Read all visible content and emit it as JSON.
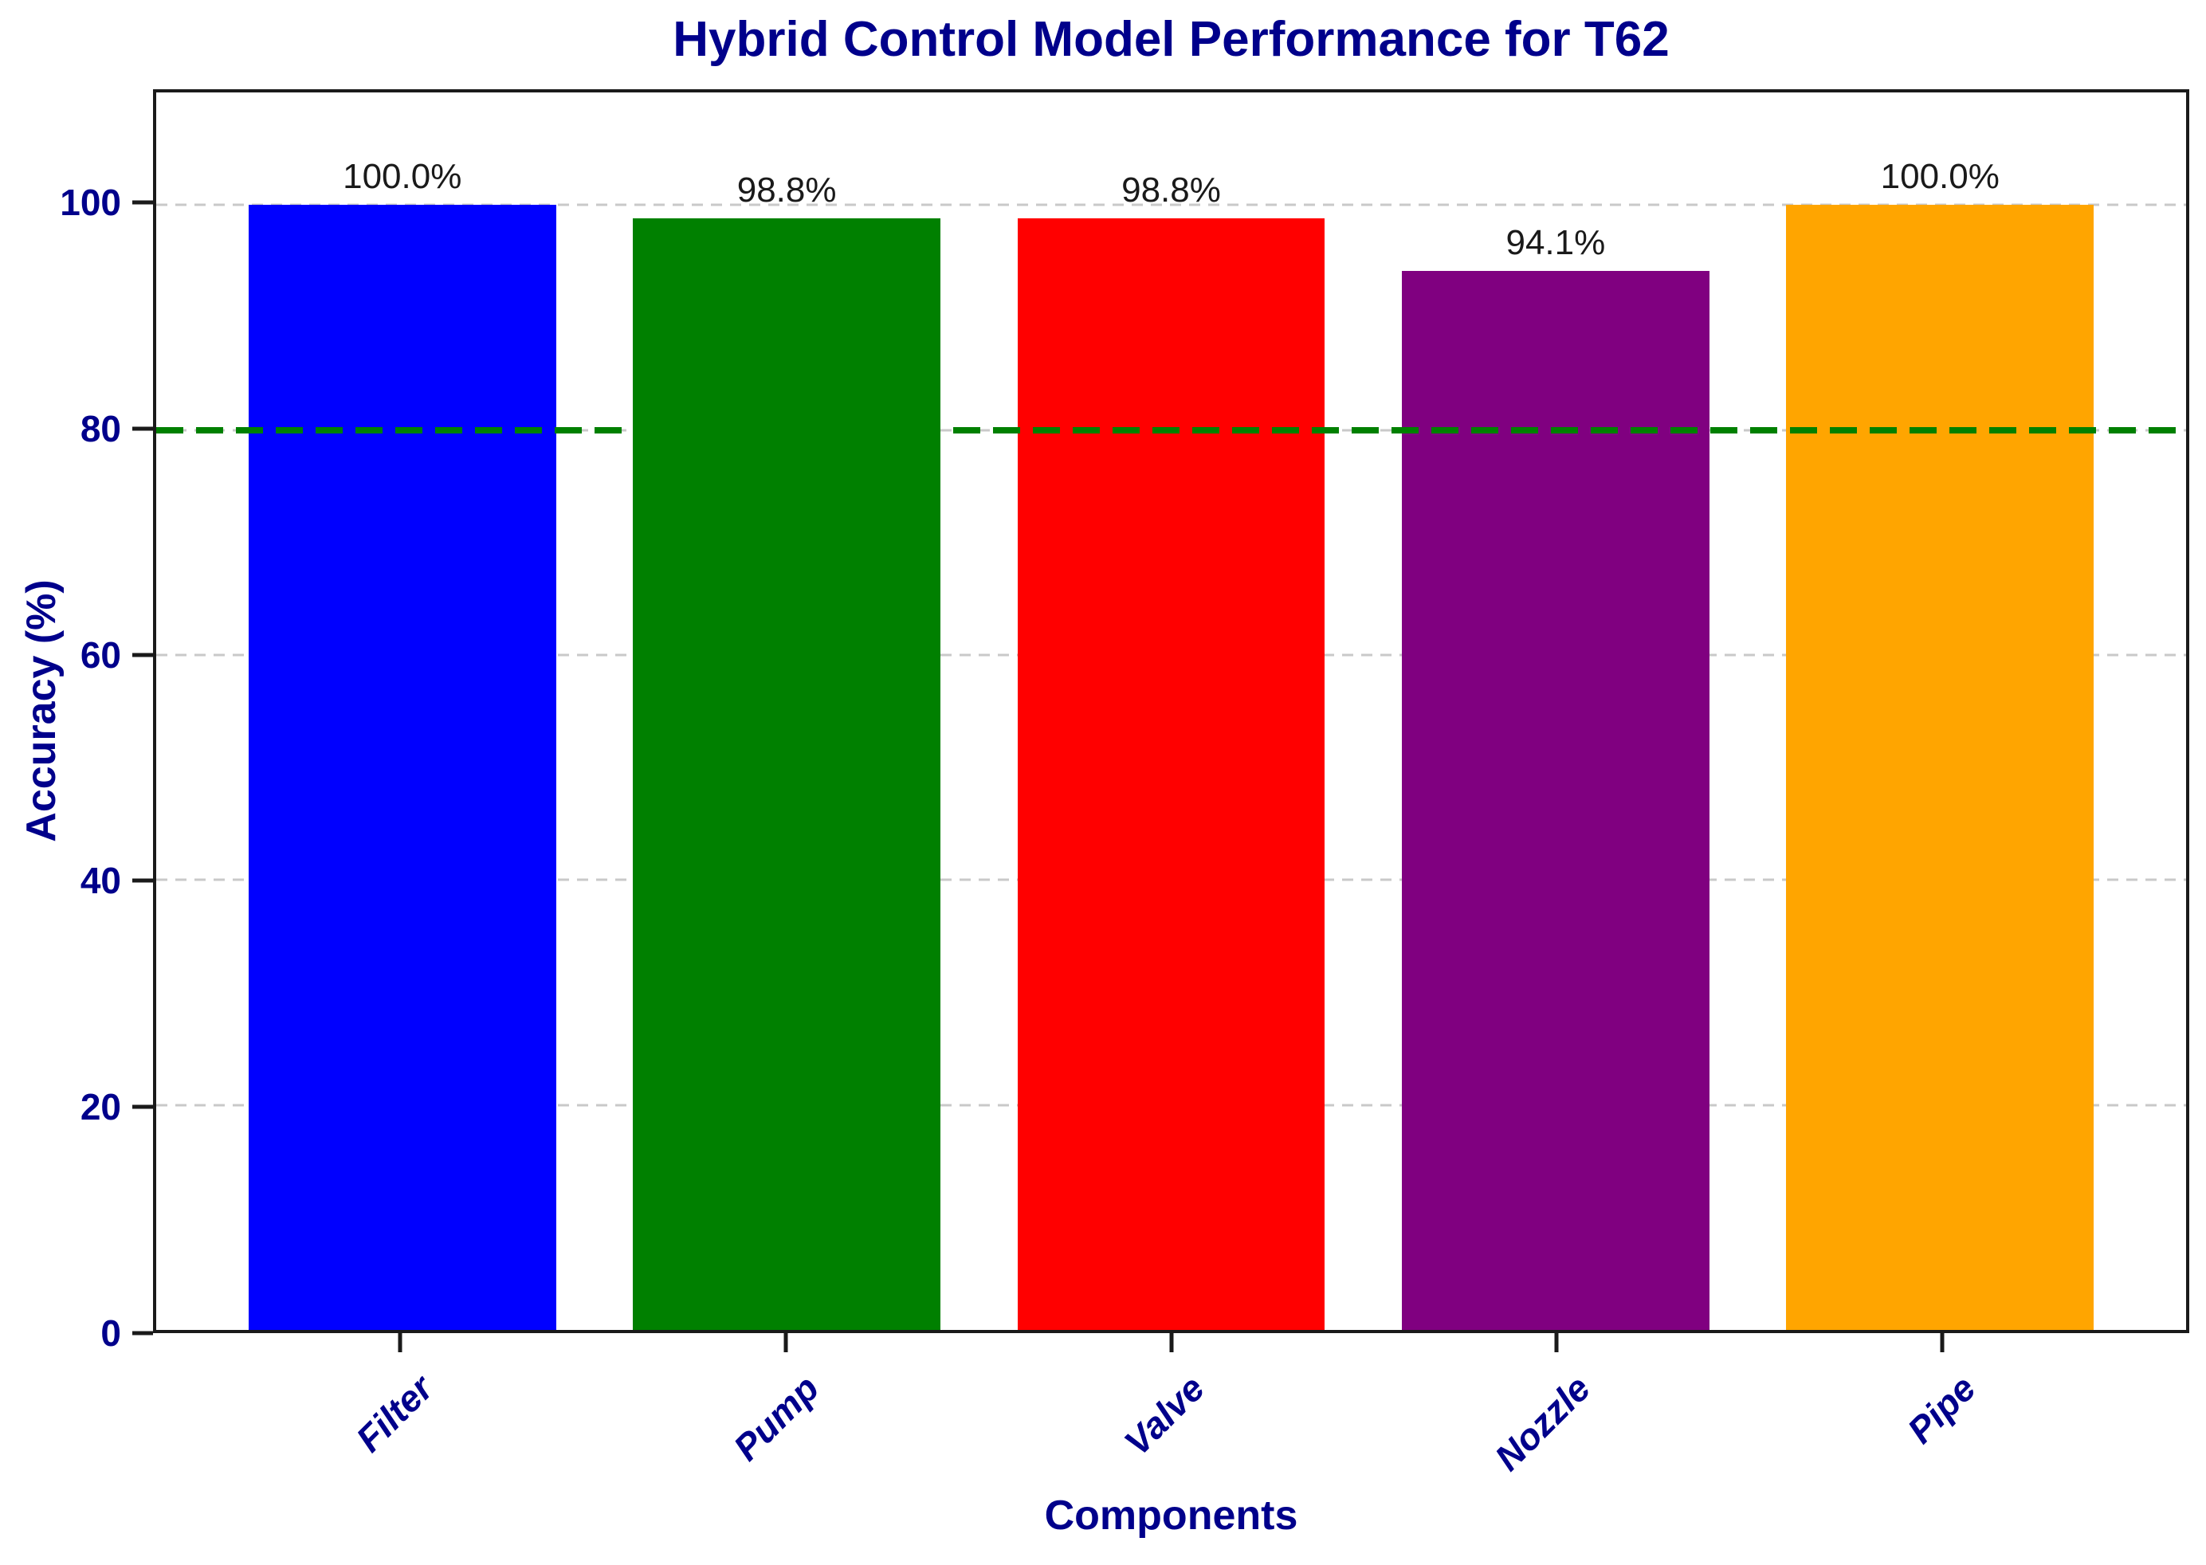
{
  "chart_data": {
    "type": "bar",
    "title": "Hybrid Control Model Performance for T62",
    "xlabel": "Components",
    "ylabel": "Accuracy (%)",
    "categories": [
      "Filter",
      "Pump",
      "Valve",
      "Nozzle",
      "Pipe"
    ],
    "values": [
      100.0,
      98.8,
      98.8,
      94.1,
      100.0
    ],
    "value_labels": [
      "100.0%",
      "98.8%",
      "98.8%",
      "94.1%",
      "100.0%"
    ],
    "bar_colors": [
      "#0000ff",
      "#008000",
      "#ff0000",
      "#800080",
      "#ffa500"
    ],
    "ylim": [
      0,
      110
    ],
    "yticks": [
      0,
      20,
      40,
      60,
      80,
      100
    ],
    "bar_width_fraction": 0.8,
    "threshold": {
      "value": 80,
      "color": "#008000",
      "style": "dashed"
    },
    "grid": {
      "horizontal": true,
      "style": "dashed",
      "color": "#c9c9c9"
    },
    "legend": "none",
    "colors": {
      "title": "#00008b",
      "axis_labels": "#00008b",
      "tick_labels": "#00008b",
      "value_labels": "#1a1a1a",
      "axis_frame": "#1a1a1a",
      "background": "#ffffff"
    }
  }
}
